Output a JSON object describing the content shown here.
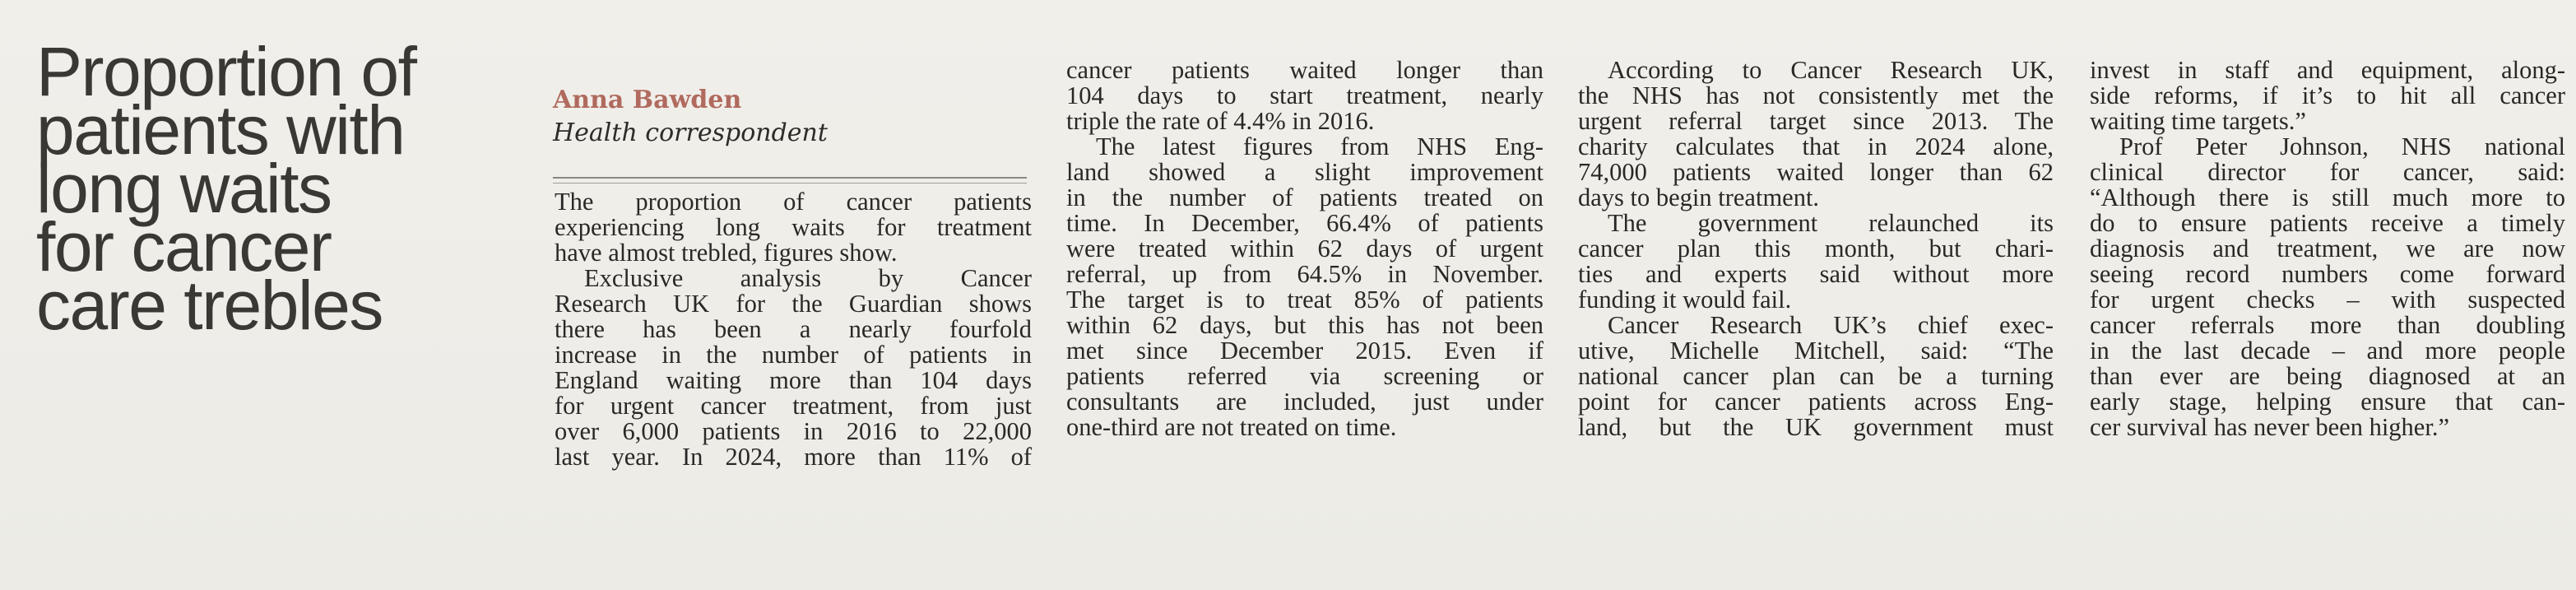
{
  "article": {
    "headline_lines": [
      "Proportion of",
      "patients with",
      "long waits",
      "for cancer",
      "care trebles"
    ],
    "byline": {
      "name": "Anna Bawden",
      "role": "Health correspondent"
    },
    "columns": [
      {
        "id": "col1",
        "lines": [
          {
            "t": "The proportion of cancer patients",
            "i": false,
            "e": false
          },
          {
            "t": "experiencing long waits for treatment",
            "i": false,
            "e": false
          },
          {
            "t": "have almost trebled, figures show.",
            "i": false,
            "e": true
          },
          {
            "t": "Exclusive analysis by Cancer",
            "i": true,
            "e": false
          },
          {
            "t": "Research UK for the Guardian shows",
            "i": false,
            "e": false
          },
          {
            "t": "there has been a nearly fourfold",
            "i": false,
            "e": false
          },
          {
            "t": "increase in the number of patients in",
            "i": false,
            "e": false
          },
          {
            "t": "England waiting more than 104 days",
            "i": false,
            "e": false
          },
          {
            "t": "for urgent cancer treatment, from just",
            "i": false,
            "e": false
          },
          {
            "t": "over 6,000 patients in 2016 to 22,000",
            "i": false,
            "e": false
          },
          {
            "t": "last year. In 2024, more than 11% of",
            "i": false,
            "e": false
          }
        ]
      },
      {
        "id": "col2",
        "lines": [
          {
            "t": "cancer patients waited longer than",
            "i": false,
            "e": false
          },
          {
            "t": "104 days to start treatment, nearly",
            "i": false,
            "e": false
          },
          {
            "t": "triple the rate of 4.4% in 2016.",
            "i": false,
            "e": true
          },
          {
            "t": "The latest figures from NHS Eng-",
            "i": true,
            "e": false
          },
          {
            "t": "land showed a slight improvement",
            "i": false,
            "e": false
          },
          {
            "t": "in the number of patients treated on",
            "i": false,
            "e": false
          },
          {
            "t": "time. In December, 66.4% of patients",
            "i": false,
            "e": false
          },
          {
            "t": "were treated within 62 days of urgent",
            "i": false,
            "e": false
          },
          {
            "t": "referral, up from 64.5% in November.",
            "i": false,
            "e": false
          },
          {
            "t": "The target is to treat 85% of patients",
            "i": false,
            "e": false
          },
          {
            "t": "within 62 days, but this has not been",
            "i": false,
            "e": false
          },
          {
            "t": "met since December 2015. Even if",
            "i": false,
            "e": false
          },
          {
            "t": "patients referred via screening or",
            "i": false,
            "e": false
          },
          {
            "t": "consultants are included, just under",
            "i": false,
            "e": false
          },
          {
            "t": "one-third are not treated on time.",
            "i": false,
            "e": true
          }
        ]
      },
      {
        "id": "col3",
        "lines": [
          {
            "t": "According to Cancer Research UK,",
            "i": true,
            "e": false
          },
          {
            "t": "the NHS has not consistently met the",
            "i": false,
            "e": false
          },
          {
            "t": "urgent referral target since 2013. The",
            "i": false,
            "e": false
          },
          {
            "t": "charity calculates that in 2024 alone,",
            "i": false,
            "e": false
          },
          {
            "t": "74,000 patients waited longer than 62",
            "i": false,
            "e": false
          },
          {
            "t": "days to begin treatment.",
            "i": false,
            "e": true
          },
          {
            "t": "The government relaunched its",
            "i": true,
            "e": false
          },
          {
            "t": "cancer plan this month, but chari-",
            "i": false,
            "e": false
          },
          {
            "t": "ties and experts said without more",
            "i": false,
            "e": false
          },
          {
            "t": "funding it would fail.",
            "i": false,
            "e": true
          },
          {
            "t": "Cancer Research UK’s chief exec-",
            "i": true,
            "e": false
          },
          {
            "t": "utive, Michelle Mitchell, said: “The",
            "i": false,
            "e": false
          },
          {
            "t": "national cancer plan can be a turning",
            "i": false,
            "e": false
          },
          {
            "t": "point for cancer patients across Eng-",
            "i": false,
            "e": false
          },
          {
            "t": "land, but the UK government must",
            "i": false,
            "e": false
          }
        ]
      },
      {
        "id": "col4",
        "lines": [
          {
            "t": "invest in staff and equipment, along-",
            "i": false,
            "e": false
          },
          {
            "t": "side reforms, if it’s to hit all cancer",
            "i": false,
            "e": false
          },
          {
            "t": "waiting time targets.”",
            "i": false,
            "e": true
          },
          {
            "t": "Prof Peter Johnson, NHS national",
            "i": true,
            "e": false
          },
          {
            "t": "clinical director for cancer, said:",
            "i": false,
            "e": false
          },
          {
            "t": "“Although there is still much more to",
            "i": false,
            "e": false
          },
          {
            "t": "do to ensure patients receive a timely",
            "i": false,
            "e": false
          },
          {
            "t": "diagnosis and treatment, we are now",
            "i": false,
            "e": false
          },
          {
            "t": "seeing record numbers come forward",
            "i": false,
            "e": false
          },
          {
            "t": "for urgent checks – with suspected",
            "i": false,
            "e": false
          },
          {
            "t": "cancer referrals more than doubling",
            "i": false,
            "e": false
          },
          {
            "t": "in the last decade – and more people",
            "i": false,
            "e": false
          },
          {
            "t": "than ever are being diagnosed at an",
            "i": false,
            "e": false
          },
          {
            "t": "early stage, helping ensure that can-",
            "i": false,
            "e": false
          },
          {
            "t": "cer survival has never been higher.”",
            "i": false,
            "e": true
          }
        ]
      }
    ]
  }
}
